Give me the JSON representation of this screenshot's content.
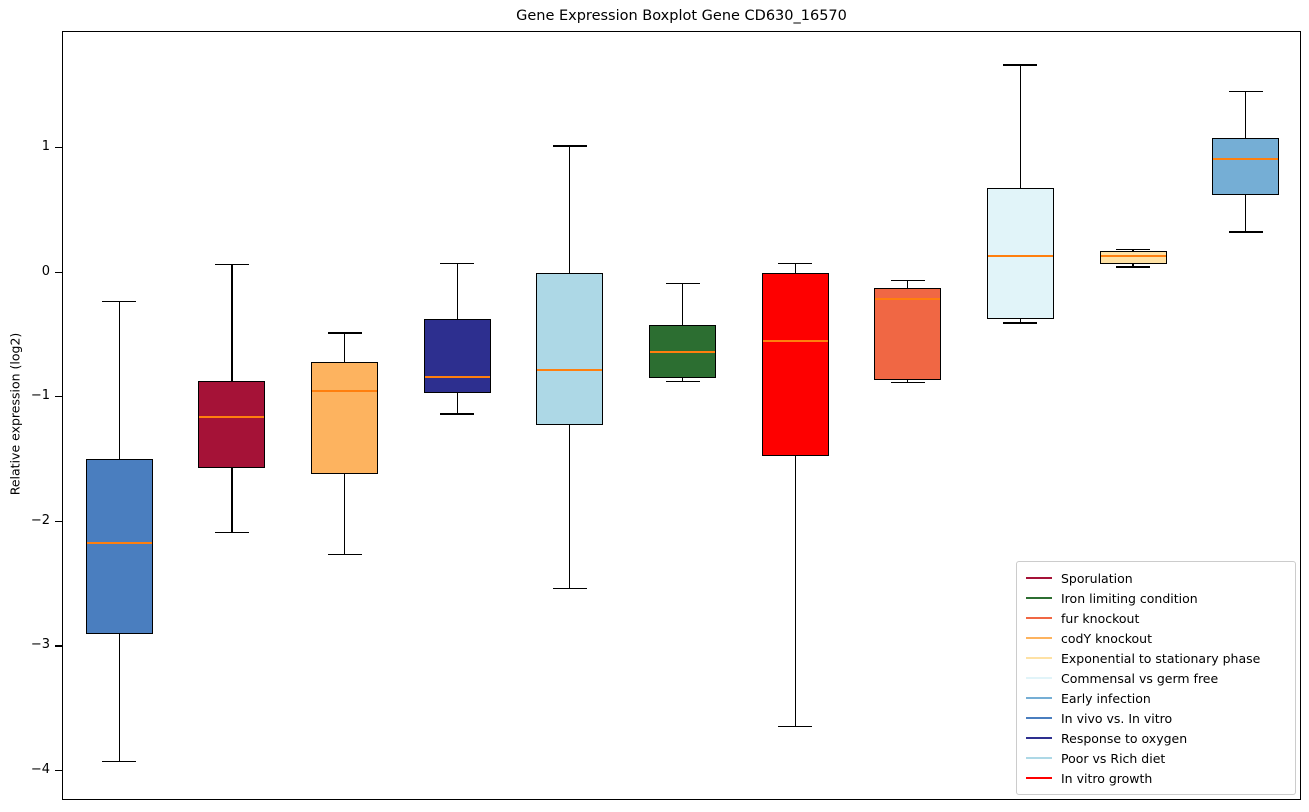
{
  "title": "Gene Expression Boxplot Gene CD630_16570",
  "ylabel": "Relative expression (log2)",
  "chart_data": {
    "type": "boxplot",
    "title": "Gene Expression Boxplot Gene CD630_16570",
    "xlabel": "",
    "ylabel": "Relative expression (log2)",
    "ylim": [
      -4.24,
      1.93
    ],
    "yticks": [
      1,
      0,
      -1,
      -2,
      -3,
      -4
    ],
    "grid": false,
    "median_color": "#ff7f0e",
    "boxes": [
      {
        "condition": "In vivo vs. In vitro",
        "color": "#4a7ebf",
        "whisker_low": -3.92,
        "q1": -2.9,
        "median": -2.17,
        "q3": -1.5,
        "whisker_high": -0.23
      },
      {
        "condition": "Sporulation",
        "color": "#a51237",
        "whisker_low": -2.08,
        "q1": -1.57,
        "median": -1.16,
        "q3": -0.87,
        "whisker_high": 0.07
      },
      {
        "condition": "codY knockout",
        "color": "#fdb35f",
        "whisker_low": -2.26,
        "q1": -1.62,
        "median": -0.95,
        "q3": -0.72,
        "whisker_high": -0.48
      },
      {
        "condition": "Response to oxygen",
        "color": "#2d2f8f",
        "whisker_low": -1.13,
        "q1": -0.97,
        "median": -0.84,
        "q3": -0.37,
        "whisker_high": 0.08
      },
      {
        "condition": "Poor vs Rich diet",
        "color": "#add8e6",
        "whisker_low": -2.53,
        "q1": -1.22,
        "median": -0.78,
        "q3": 0.0,
        "whisker_high": 1.02
      },
      {
        "condition": "Iron limiting condition",
        "color": "#2c6e31",
        "whisker_low": -0.87,
        "q1": -0.85,
        "median": -0.64,
        "q3": -0.42,
        "whisker_high": -0.08
      },
      {
        "condition": "In vitro growth",
        "color": "#fe0000",
        "whisker_low": -3.64,
        "q1": -1.47,
        "median": -0.55,
        "q3": 0.0,
        "whisker_high": 0.08
      },
      {
        "condition": "fur knockout",
        "color": "#f06744",
        "whisker_low": -0.88,
        "q1": -0.86,
        "median": -0.21,
        "q3": -0.12,
        "whisker_high": -0.06
      },
      {
        "condition": "Commensal vs germ free",
        "color": "#e1f4f9",
        "whisker_low": -0.4,
        "q1": -0.37,
        "median": 0.13,
        "q3": 0.68,
        "whisker_high": 1.67
      },
      {
        "condition": "Exponential to stationary phase",
        "color": "#fee1a4",
        "whisker_low": 0.05,
        "q1": 0.07,
        "median": 0.13,
        "q3": 0.17,
        "whisker_high": 0.19
      },
      {
        "condition": "Early infection",
        "color": "#75aed5",
        "whisker_low": 0.33,
        "q1": 0.62,
        "median": 0.91,
        "q3": 1.08,
        "whisker_high": 1.46
      }
    ],
    "legend": {
      "position": "lower right",
      "entries": [
        {
          "label": "Sporulation",
          "color": "#a51237"
        },
        {
          "label": "Iron limiting condition",
          "color": "#2c6e31"
        },
        {
          "label": "fur knockout",
          "color": "#f06744"
        },
        {
          "label": "codY knockout",
          "color": "#fdb35f"
        },
        {
          "label": "Exponential to stationary phase",
          "color": "#fee1a4"
        },
        {
          "label": "Commensal vs germ free",
          "color": "#e1f4f9"
        },
        {
          "label": "Early infection",
          "color": "#75aed5"
        },
        {
          "label": "In vivo vs. In vitro",
          "color": "#4a7ebf"
        },
        {
          "label": "Response to oxygen",
          "color": "#2d2f8f"
        },
        {
          "label": "Poor vs Rich diet",
          "color": "#add8e6"
        },
        {
          "label": "In vitro growth",
          "color": "#fe0000"
        }
      ]
    }
  }
}
